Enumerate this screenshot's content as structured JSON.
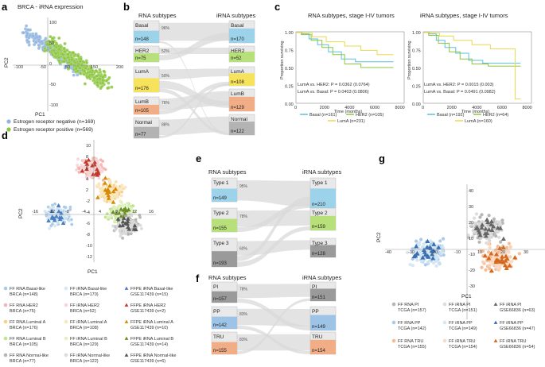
{
  "panels": {
    "a": {
      "label": "a",
      "title": "BRCA - iRNA expression",
      "xlabel": "PC1",
      "ylabel": "PC2",
      "xticks": [
        "-100",
        "-50",
        "50",
        "150",
        "200"
      ],
      "yticks": [
        "100",
        "50",
        "0",
        "-50",
        "-100"
      ],
      "legend": [
        {
          "text": "Estrogen receptor negative (n=169)",
          "color": "#8fb4df"
        },
        {
          "text": "Estrogen receptor positive (n=569)",
          "color": "#8cc63f"
        }
      ]
    },
    "b": {
      "label": "b",
      "left_header": "RNA subtypes",
      "right_header": "iRNA subtypes",
      "left": [
        {
          "name": "Basal",
          "n": "n=148",
          "pct": "96%",
          "color": "#9dd3ea"
        },
        {
          "name": "HER2",
          "n": "n=75",
          "pct": "52%",
          "color": "#b8e07a"
        },
        {
          "name": "LumA",
          "n": "n=176",
          "pct": "50%",
          "color": "#f7e25b"
        },
        {
          "name": "LumB",
          "n": "n=105",
          "pct": "76%",
          "color": "#f0ad86"
        },
        {
          "name": "Normal",
          "n": "n=77",
          "pct": "88%",
          "color": "#b3b3b3"
        }
      ],
      "right": [
        {
          "name": "Basal",
          "n": "n=170",
          "color": "#9dd3ea"
        },
        {
          "name": "HER2",
          "n": "n=52",
          "color": "#b8e07a"
        },
        {
          "name": "LumA",
          "n": "n=108",
          "color": "#f7e25b"
        },
        {
          "name": "LumB",
          "n": "n=129",
          "color": "#f0ad86"
        },
        {
          "name": "Normal",
          "n": "n=122",
          "color": "#b3b3b3"
        }
      ]
    },
    "c": {
      "label": "c",
      "left_title": "RNA subtypes, stage I-IV tumors",
      "right_title": "iRNA subtypes, stage I-IV tumors",
      "ylabel": "Proportion surviving",
      "xlabel": "Time (months)",
      "yticks": [
        "1.00",
        "0.75",
        "0.50",
        "0.25",
        "0.00"
      ],
      "xticks": [
        "0",
        "2000",
        "4000",
        "6000",
        "8000"
      ],
      "left_stats": [
        "LumA vs. HER2: P = 0.0362 (0.0764)",
        "LumA vs. Basal: P = 0.0403 (0.0806)"
      ],
      "right_stats": [
        "LumA vs. HER2: P = 0.0015 (0.003)",
        "LumA vs. Basal: P = 0.0491 (0.0982)"
      ],
      "left_legend": [
        {
          "text": "Basal (n=161)",
          "color": "#5bc0de"
        },
        {
          "text": "HER2 (n=105)",
          "color": "#8cc63f"
        },
        {
          "text": "LumA (n=231)",
          "color": "#e8d84a"
        }
      ],
      "right_legend": [
        {
          "text": "Basal (n=192)",
          "color": "#5bc0de"
        },
        {
          "text": "HER2 (n=64)",
          "color": "#8cc63f"
        },
        {
          "text": "LumA (n=160)",
          "color": "#e8d84a"
        }
      ]
    },
    "d": {
      "label": "d",
      "xlabel": "PC1",
      "ylabel": "PC2",
      "xticks": [
        "-16",
        "-12",
        "-8",
        "-4",
        "4",
        "8",
        "12",
        "16"
      ],
      "yticks": [
        "10",
        "8",
        "6",
        "4",
        "2",
        "-2",
        "-4",
        "-6",
        "-8",
        "-10",
        "-12"
      ],
      "legend": [
        {
          "text": "FF RNA Basal-like BRCA (n=148)",
          "color": "#9dc3e6",
          "shape": "circle"
        },
        {
          "text": "FF iRNA Basal-like BRCA (n=170)",
          "color": "#cfe3f3",
          "shape": "circle"
        },
        {
          "text": "FFPE iRNA Basal-like GSE117439 (n=15)",
          "color": "#4a7fc1",
          "shape": "triangle"
        },
        {
          "text": "FF RNA HER2 BRCA (n=75)",
          "color": "#f3a8a8",
          "shape": "circle"
        },
        {
          "text": "FF iRNA HER2 BRCA (n=52)",
          "color": "#f7d0d0",
          "shape": "circle"
        },
        {
          "text": "FFPE iRNA HER2 GSE117439 (n=2)",
          "color": "#c0392b",
          "shape": "triangle"
        },
        {
          "text": "FF RNA Luminal A BRCA (n=176)",
          "color": "#f5c97a",
          "shape": "circle"
        },
        {
          "text": "FF iRNA Luminal A BRCA (n=108)",
          "color": "#fae3b5",
          "shape": "circle"
        },
        {
          "text": "FFPE iRNA Luminal A GSE117439 (n=10)",
          "color": "#d68a00",
          "shape": "triangle"
        },
        {
          "text": "FF RNA Luminal B BRCA (n=105)",
          "color": "#b8e07a",
          "shape": "circle"
        },
        {
          "text": "FF iRNA Luminal B BRCA (n=129)",
          "color": "#dcefbd",
          "shape": "circle"
        },
        {
          "text": "FFPE iRNA Luminal B GSE117439 (n=14)",
          "color": "#6b8e23",
          "shape": "triangle"
        },
        {
          "text": "FF RNA Normal-like BRCA (n=77)",
          "color": "#aaaaaa",
          "shape": "circle"
        },
        {
          "text": "FF iRNA Normal-like BRCA (n=122)",
          "color": "#d6d6d6",
          "shape": "circle"
        },
        {
          "text": "FFPE iRNA Normal-like GSE117439 (n=6)",
          "color": "#555555",
          "shape": "triangle"
        }
      ]
    },
    "e": {
      "label": "e",
      "left_header": "RNA subtypes",
      "right_header": "iRNA subtypes",
      "left": [
        {
          "name": "Type 1",
          "n": "n=149",
          "pct": "95%",
          "color": "#9dd3ea"
        },
        {
          "name": "Type 2",
          "n": "n=155",
          "pct": "78%",
          "color": "#b8e07a"
        },
        {
          "name": "Type 3",
          "n": "n=193",
          "pct": "60%",
          "color": "#9a9a9a"
        }
      ],
      "right": [
        {
          "name": "Type 1",
          "n": "n=210",
          "color": "#9dd3ea"
        },
        {
          "name": "Type 2",
          "n": "n=159",
          "color": "#b8e07a"
        },
        {
          "name": "Type 3",
          "n": "n=128",
          "color": "#9a9a9a"
        }
      ]
    },
    "f": {
      "label": "f",
      "left_header": "RNA subtypes",
      "right_header": "iRNA subtypes",
      "left": [
        {
          "name": "PI",
          "n": "n=157",
          "pct": "78%",
          "color": "#9a9a9a"
        },
        {
          "name": "PP",
          "n": "n=142",
          "pct": "83%",
          "color": "#9dc3e6"
        },
        {
          "name": "TRU",
          "n": "n=155",
          "pct": "83%",
          "color": "#f0ad86"
        }
      ],
      "right": [
        {
          "name": "PI",
          "n": "n=151",
          "color": "#9a9a9a"
        },
        {
          "name": "PP",
          "n": "n=149",
          "color": "#9dc3e6"
        },
        {
          "name": "TRU",
          "n": "n=154",
          "color": "#f0ad86"
        }
      ]
    },
    "g": {
      "label": "g",
      "xlabel": "PC1",
      "ylabel": "PC2",
      "xticks": [
        "-40",
        "-30",
        "-20",
        "-10",
        "10",
        "20",
        "30"
      ],
      "yticks": [
        "40",
        "30",
        "20",
        "10",
        "-10",
        "-20",
        "-30"
      ],
      "legend": [
        {
          "text": "FF RNA PI TCGA (n=157)",
          "color": "#aaaaaa",
          "shape": "circle"
        },
        {
          "text": "FF iRNA PI TCGA (n=151)",
          "color": "#d6d6d6",
          "shape": "circle"
        },
        {
          "text": "FF iRNA PI GSE66836 (n=63)",
          "color": "#666666",
          "shape": "triangle"
        },
        {
          "text": "FF RNA PP TCGA (n=142)",
          "color": "#9dc3e6",
          "shape": "circle"
        },
        {
          "text": "FF iRNA PP TCGA (n=149)",
          "color": "#cfe3f3",
          "shape": "circle"
        },
        {
          "text": "FF iRNA PP GSE66836 (n=47)",
          "color": "#3a6fb0",
          "shape": "triangle"
        },
        {
          "text": "FF RNA TRU TCGA (n=155)",
          "color": "#f5b183",
          "shape": "circle"
        },
        {
          "text": "FF iRNA TRU TCGA (n=154)",
          "color": "#fad5bd",
          "shape": "circle"
        },
        {
          "text": "FF iRNA TRU GSE66836 (n=54)",
          "color": "#d2691e",
          "shape": "triangle"
        }
      ]
    }
  }
}
